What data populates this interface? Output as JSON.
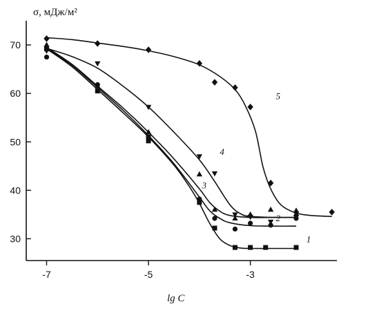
{
  "chart_data": {
    "type": "scatter",
    "xlabel": "lg C",
    "ylabel": "σ, мДж/м²",
    "xlim": [
      -7.4,
      -1.3
    ],
    "ylim": [
      25.5,
      75
    ],
    "xticks": [
      -7,
      -5,
      -3
    ],
    "xtick_labels": [
      "-7",
      "-5",
      "-3"
    ],
    "yticks": [
      30,
      40,
      50,
      60,
      70
    ],
    "ytick_labels": [
      "30",
      "40",
      "50",
      "60",
      "70"
    ],
    "grid": false,
    "series": [
      {
        "name": "1",
        "marker": "square",
        "points": [
          [
            -7,
            69.2
          ],
          [
            -6,
            60.5
          ],
          [
            -5,
            50.2
          ],
          [
            -5,
            51.0
          ],
          [
            -4,
            37.5
          ],
          [
            -3.7,
            32.2
          ],
          [
            -3.3,
            28.2
          ],
          [
            -3,
            28.2
          ],
          [
            -2.7,
            28.2
          ],
          [
            -2.1,
            28.2
          ]
        ],
        "curve": [
          [
            -7,
            69.2
          ],
          [
            -6.5,
            65.5
          ],
          [
            -6,
            60.8
          ],
          [
            -5.5,
            56.0
          ],
          [
            -5,
            51.0
          ],
          [
            -4.5,
            45.2
          ],
          [
            -4.2,
            40.8
          ],
          [
            -4,
            37.3
          ],
          [
            -3.8,
            33.2
          ],
          [
            -3.6,
            30.0
          ],
          [
            -3.4,
            28.6
          ],
          [
            -3.2,
            28.1
          ],
          [
            -3,
            28.0
          ],
          [
            -2.5,
            28.0
          ],
          [
            -2.1,
            28.0
          ]
        ]
      },
      {
        "name": "2",
        "marker": "circle",
        "points": [
          [
            -7,
            67.5
          ],
          [
            -6,
            61.8
          ],
          [
            -5,
            51.0
          ],
          [
            -4,
            38.2
          ],
          [
            -3.7,
            34.2
          ],
          [
            -3.3,
            32.0
          ],
          [
            -3,
            33.2
          ],
          [
            -2.6,
            32.8
          ],
          [
            -2.1,
            34.2
          ]
        ],
        "curve": [
          [
            -7,
            69.3
          ],
          [
            -6.5,
            65.8
          ],
          [
            -6,
            61.2
          ],
          [
            -5.5,
            56.5
          ],
          [
            -5,
            51.3
          ],
          [
            -4.5,
            45.5
          ],
          [
            -4,
            38.6
          ],
          [
            -3.8,
            35.8
          ],
          [
            -3.6,
            34.2
          ],
          [
            -3.4,
            33.3
          ],
          [
            -3,
            32.7
          ],
          [
            -2.5,
            32.6
          ],
          [
            -2.1,
            32.6
          ]
        ]
      },
      {
        "name": "3",
        "marker": "triangle-up",
        "points": [
          [
            -7,
            70.0
          ],
          [
            -6,
            61.5
          ],
          [
            -5,
            52.0
          ],
          [
            -4,
            43.3
          ],
          [
            -3.7,
            36.0
          ],
          [
            -3.3,
            34.2
          ],
          [
            -3,
            35.0
          ],
          [
            -2.6,
            36.0
          ],
          [
            -2.1,
            35.8
          ]
        ],
        "curve": [
          [
            -7,
            69.5
          ],
          [
            -6.5,
            66.0
          ],
          [
            -6,
            61.5
          ],
          [
            -5.5,
            57.0
          ],
          [
            -5,
            52.0
          ],
          [
            -4.5,
            46.5
          ],
          [
            -4,
            40.3
          ],
          [
            -3.8,
            37.5
          ],
          [
            -3.6,
            35.7
          ],
          [
            -3.4,
            34.8
          ],
          [
            -3,
            34.4
          ],
          [
            -2.5,
            34.4
          ],
          [
            -2.1,
            34.4
          ]
        ]
      },
      {
        "name": "4",
        "marker": "triangle-down",
        "points": [
          [
            -7,
            68.8
          ],
          [
            -6,
            66.2
          ],
          [
            -5,
            57.2
          ],
          [
            -4,
            47.0
          ],
          [
            -3.7,
            43.5
          ],
          [
            -3.3,
            35.0
          ],
          [
            -3,
            34.5
          ],
          [
            -2.6,
            33.5
          ],
          [
            -2.1,
            35.2
          ]
        ],
        "curve": [
          [
            -7,
            69.3
          ],
          [
            -6.5,
            67.6
          ],
          [
            -6,
            65.2
          ],
          [
            -5.5,
            61.5
          ],
          [
            -5,
            57.2
          ],
          [
            -4.5,
            52.0
          ],
          [
            -4,
            46.3
          ],
          [
            -3.7,
            41.8
          ],
          [
            -3.4,
            37.0
          ],
          [
            -3.2,
            35.2
          ],
          [
            -3,
            34.6
          ],
          [
            -2.5,
            34.4
          ],
          [
            -2.1,
            34.4
          ]
        ]
      },
      {
        "name": "5",
        "marker": "diamond",
        "points": [
          [
            -7,
            71.3
          ],
          [
            -6,
            70.3
          ],
          [
            -5,
            69.0
          ],
          [
            -4,
            66.2
          ],
          [
            -3.7,
            62.3
          ],
          [
            -3.3,
            61.2
          ],
          [
            -3,
            57.2
          ],
          [
            -2.6,
            41.5
          ],
          [
            -2.1,
            34.8
          ],
          [
            -1.4,
            35.5
          ]
        ],
        "curve": [
          [
            -7,
            71.5
          ],
          [
            -6.5,
            71.1
          ],
          [
            -6,
            70.4
          ],
          [
            -5.5,
            69.7
          ],
          [
            -5,
            68.8
          ],
          [
            -4.5,
            67.6
          ],
          [
            -4,
            65.9
          ],
          [
            -3.6,
            63.5
          ],
          [
            -3.3,
            60.8
          ],
          [
            -3.1,
            57.5
          ],
          [
            -2.9,
            52.2
          ],
          [
            -2.75,
            44.8
          ],
          [
            -2.6,
            40.3
          ],
          [
            -2.4,
            37.0
          ],
          [
            -2.1,
            35.3
          ],
          [
            -1.8,
            34.8
          ],
          [
            -1.4,
            34.6
          ]
        ]
      }
    ]
  }
}
